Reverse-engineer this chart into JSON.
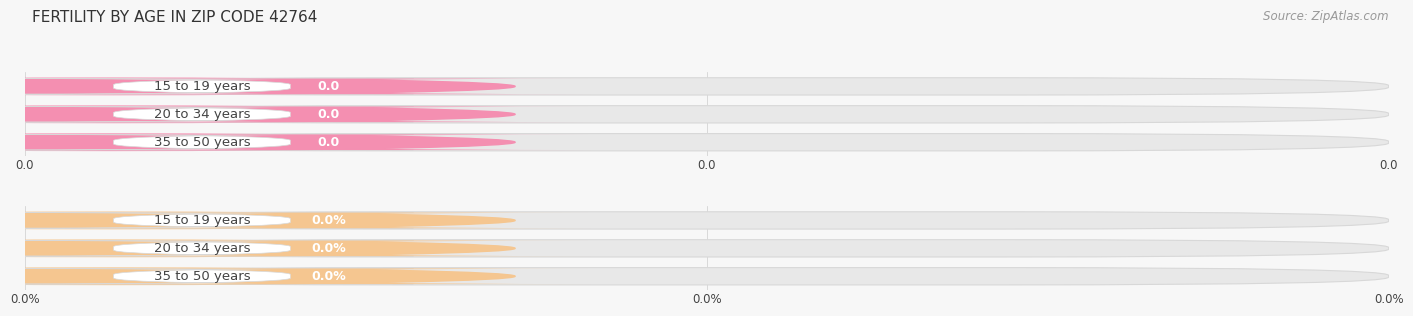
{
  "title": "FERTILITY BY AGE IN ZIP CODE 42764",
  "source": "Source: ZipAtlas.com",
  "top_section": {
    "categories": [
      "15 to 19 years",
      "20 to 34 years",
      "35 to 50 years"
    ],
    "values": [
      0.0,
      0.0,
      0.0
    ],
    "bar_color": "#f48fb1",
    "value_label": "0.0",
    "axis_tick_labels": [
      "0.0",
      "0.0",
      "0.0"
    ]
  },
  "bottom_section": {
    "categories": [
      "15 to 19 years",
      "20 to 34 years",
      "35 to 50 years"
    ],
    "values": [
      0.0,
      0.0,
      0.0
    ],
    "bar_color": "#f5c690",
    "value_label": "0.0%",
    "axis_tick_labels": [
      "0.0%",
      "0.0%",
      "0.0%"
    ]
  },
  "bg_color": "#f7f7f7",
  "bar_bg_color": "#e8e8e8",
  "bar_border_color": "#d8d8d8",
  "grid_color": "#cccccc",
  "text_color": "#444444",
  "source_color": "#999999",
  "title_color": "#333333",
  "label_fontsize": 9.5,
  "title_fontsize": 11,
  "source_fontsize": 8.5,
  "tick_fontsize": 8.5,
  "value_fontsize": 9
}
